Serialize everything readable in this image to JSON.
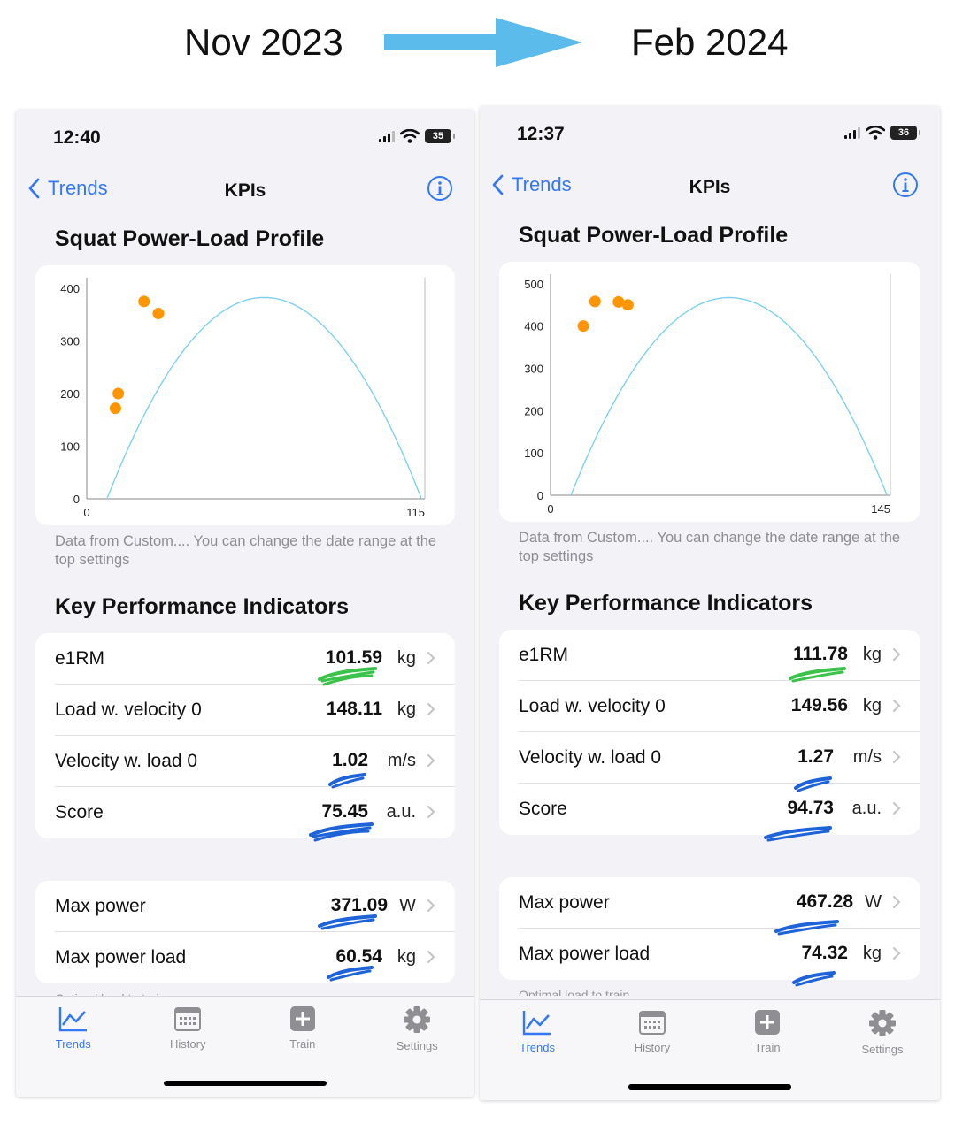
{
  "header": {
    "from_label": "Nov 2023",
    "to_label": "Feb 2024",
    "arrow_color": "#5bbcec"
  },
  "colors": {
    "accent": "#3478f6",
    "curve": "#7fd0f0",
    "points": "#ff9500",
    "mark_green": "#3ac24a",
    "mark_blue": "#1f63d8"
  },
  "phones": [
    {
      "status_time": "12:40",
      "battery": "35",
      "nav": {
        "back_label": "Trends",
        "title": "KPIs"
      },
      "profile_title": "Squat Power-Load Profile",
      "caption": "Data from Custom.... You can change the date range at the top settings",
      "kpi_title": "Key Performance Indicators",
      "kpis": [
        {
          "label": "e1RM",
          "value": "101.59",
          "unit": "kg"
        },
        {
          "label": "Load w. velocity 0",
          "value": "148.11",
          "unit": "kg"
        },
        {
          "label": "Velocity w. load 0",
          "value": "1.02",
          "unit": "m/s"
        },
        {
          "label": "Score",
          "value": "75.45",
          "unit": "a.u."
        }
      ],
      "power_kpis": [
        {
          "label": "Max power",
          "value": "371.09",
          "unit": "W"
        },
        {
          "label": "Max power load",
          "value": "60.54",
          "unit": "kg"
        }
      ],
      "peek_label": "Optimal load to train",
      "tabs": [
        "Trends",
        "History",
        "Train",
        "Settings"
      ]
    },
    {
      "status_time": "12:37",
      "battery": "36",
      "nav": {
        "back_label": "Trends",
        "title": "KPIs"
      },
      "profile_title": "Squat Power-Load Profile",
      "caption": "Data from Custom.... You can change the date range at the top settings",
      "kpi_title": "Key Performance Indicators",
      "kpis": [
        {
          "label": "e1RM",
          "value": "111.78",
          "unit": "kg"
        },
        {
          "label": "Load w. velocity 0",
          "value": "149.56",
          "unit": "kg"
        },
        {
          "label": "Velocity w. load 0",
          "value": "1.27",
          "unit": "m/s"
        },
        {
          "label": "Score",
          "value": "94.73",
          "unit": "a.u."
        }
      ],
      "power_kpis": [
        {
          "label": "Max power",
          "value": "467.28",
          "unit": "W"
        },
        {
          "label": "Max power load",
          "value": "74.32",
          "unit": "kg"
        }
      ],
      "peek_label": "Optimal load to train",
      "tabs": [
        "Trends",
        "History",
        "Train",
        "Settings"
      ]
    }
  ],
  "chart_data": [
    {
      "type": "scatter",
      "x": [
        7,
        8,
        17,
        22
      ],
      "y": [
        172,
        200,
        375,
        352
      ],
      "fit_curve": "parabola",
      "x_ticks": [
        "0",
        "115"
      ],
      "y_ticks": [
        "0",
        "100",
        "200",
        "300",
        "400"
      ],
      "xlim": [
        -3,
        115
      ],
      "ylim": [
        0,
        410
      ],
      "grid": false
    },
    {
      "type": "scatter",
      "x": [
        14,
        19,
        29,
        33
      ],
      "y": [
        400,
        458,
        457,
        450
      ],
      "fit_curve": "parabola",
      "x_ticks": [
        "0",
        "145"
      ],
      "y_ticks": [
        "0",
        "100",
        "200",
        "300",
        "400",
        "500"
      ],
      "xlim": [
        0,
        145
      ],
      "ylim": [
        0,
        510
      ],
      "grid": false
    }
  ]
}
